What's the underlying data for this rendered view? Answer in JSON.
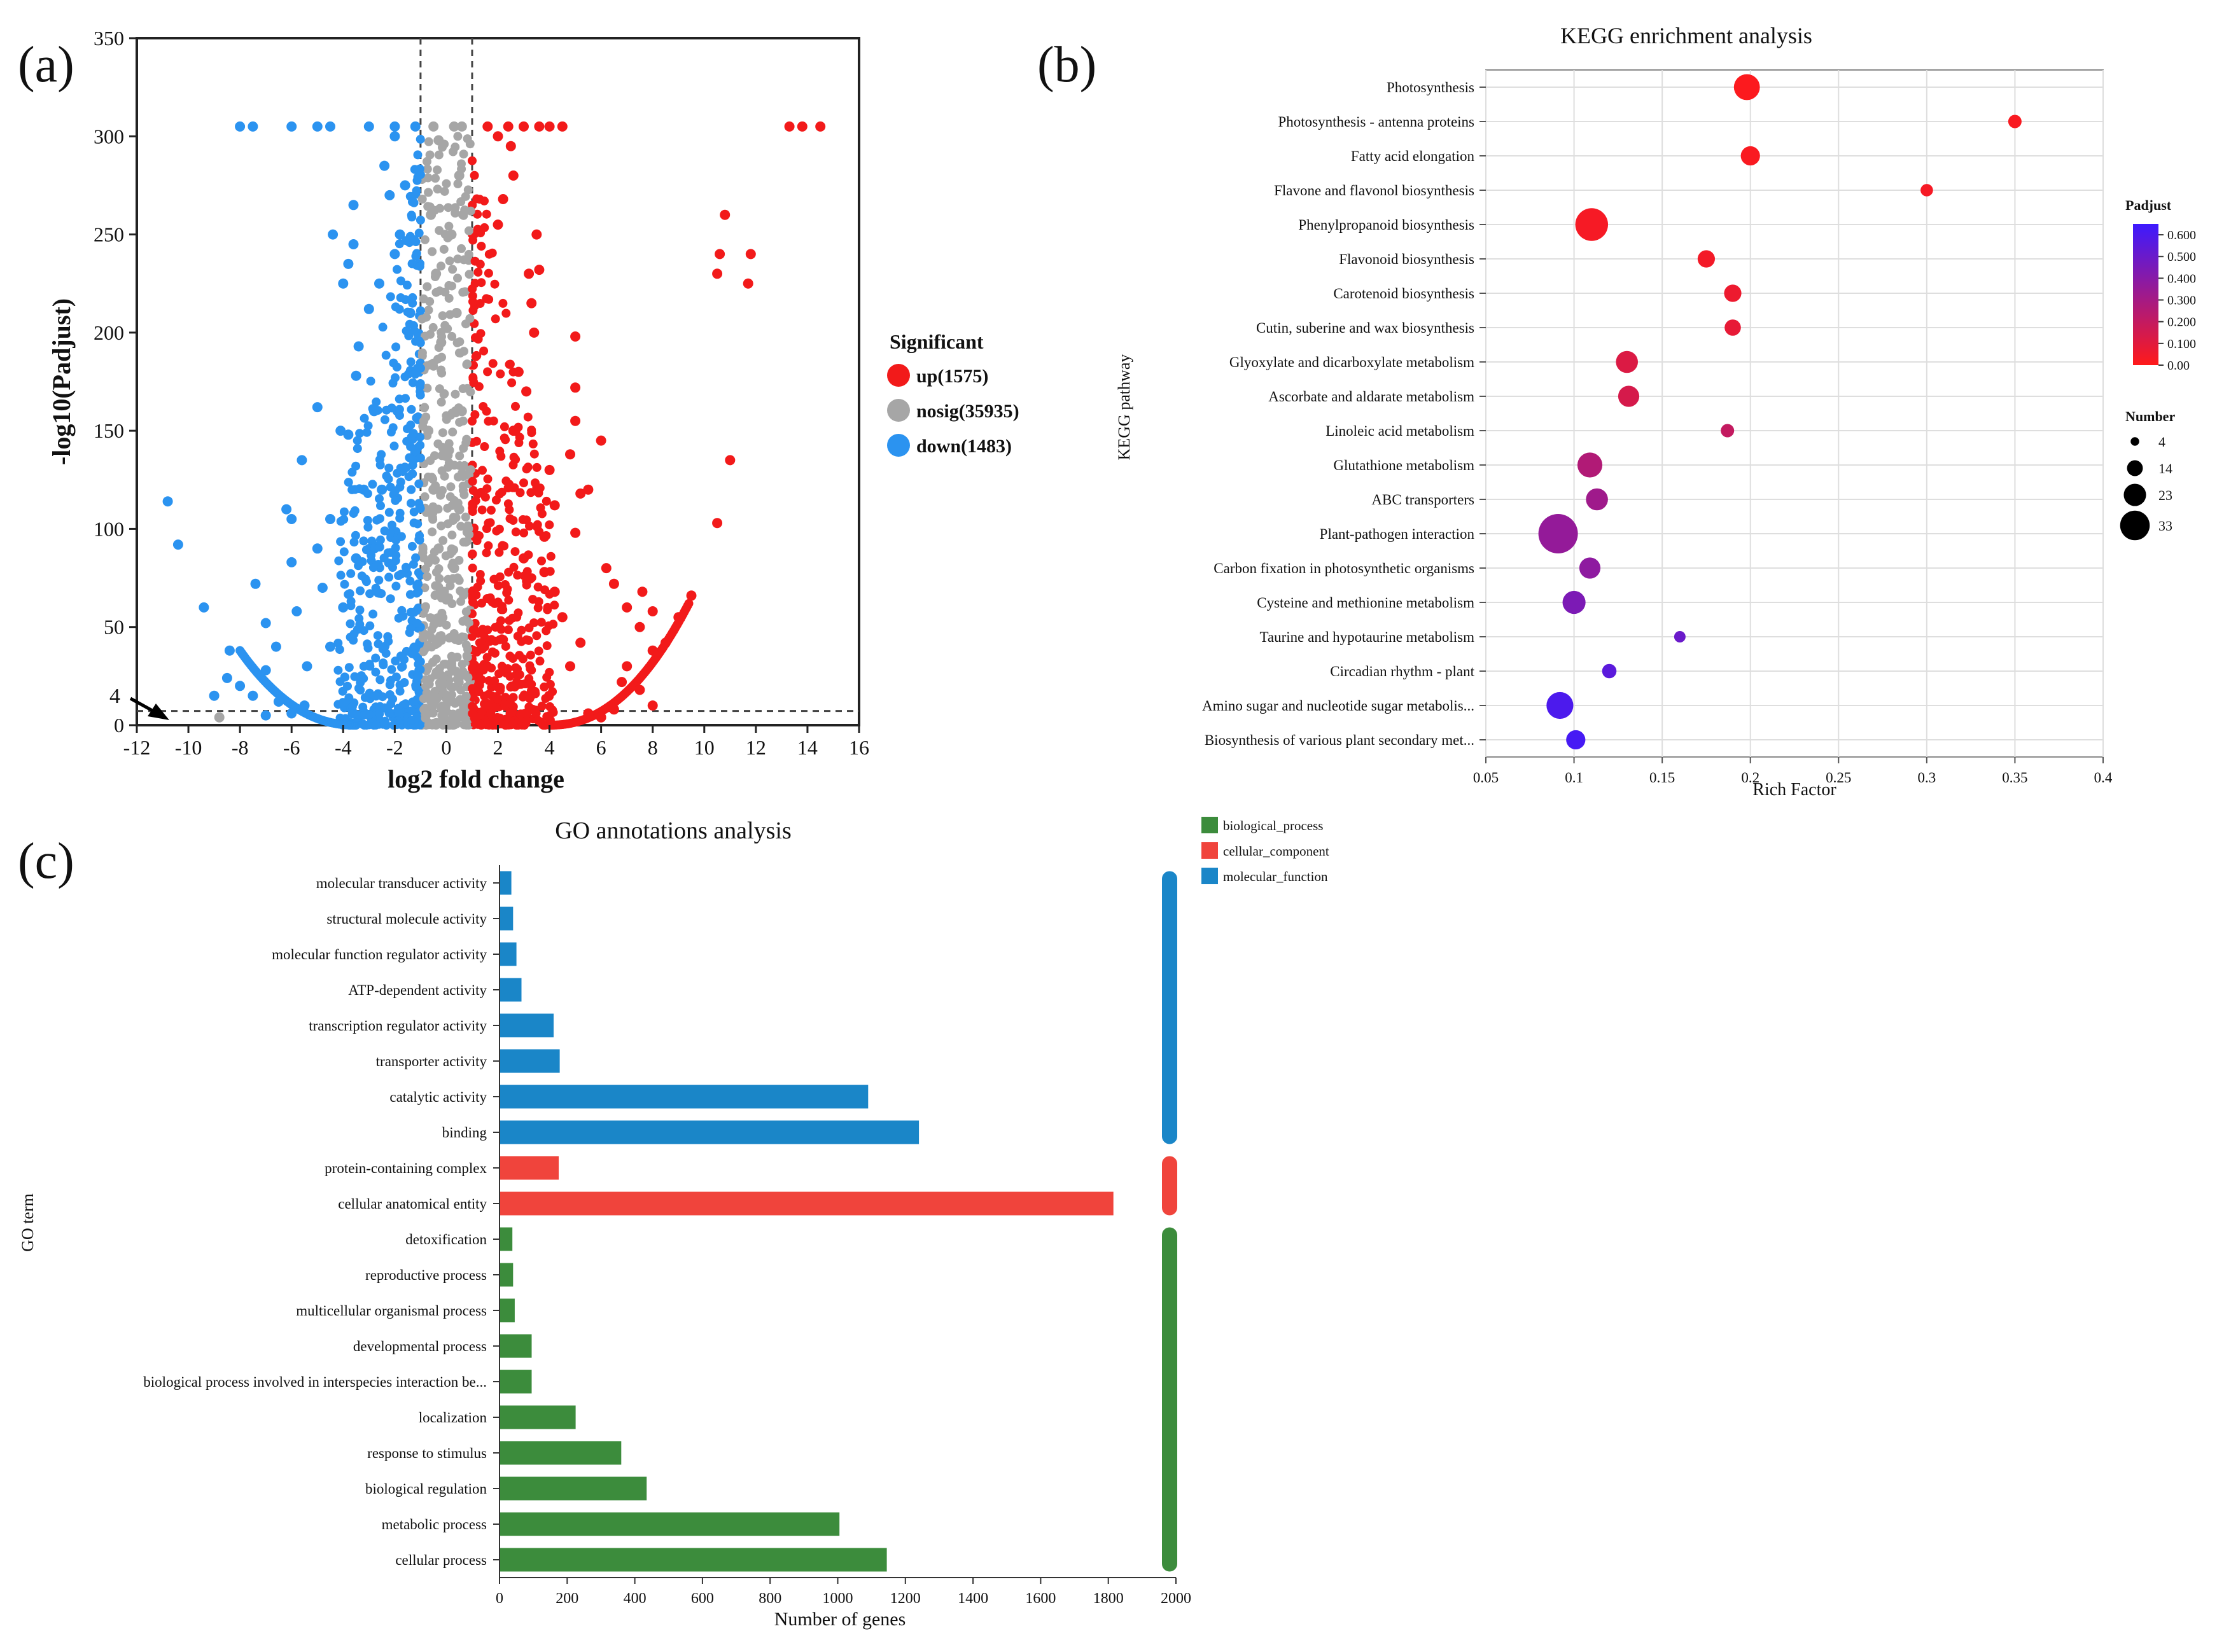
{
  "figure": {
    "panel_labels": {
      "a": "(a)",
      "b": "(b)",
      "c": "(c)"
    }
  },
  "chart_data": [
    {
      "id": "volcano",
      "type": "scatter",
      "title": "",
      "xlabel": "log2 fold change",
      "ylabel": "-log10(Padjust)",
      "xlim": [
        -12,
        16
      ],
      "ylim": [
        0,
        350
      ],
      "xticks": [
        -12,
        -10,
        -8,
        -6,
        -4,
        -2,
        0,
        2,
        4,
        6,
        8,
        10,
        12,
        14,
        16
      ],
      "yticks": [
        0,
        50,
        100,
        150,
        200,
        250,
        300,
        350
      ],
      "fc_threshold": [
        -1,
        1
      ],
      "padj_threshold": 4,
      "annotation": "4",
      "legend_title": "Significant",
      "legend": [
        {
          "label": "up(1575)",
          "color": "#f21a1a"
        },
        {
          "label": "nosig(35935)",
          "color": "#a6a6a6"
        },
        {
          "label": "down(1483)",
          "color": "#2b93f0"
        }
      ],
      "series": [
        {
          "name": "up",
          "color": "#f21a1a",
          "points": [
            [
              13.3,
              305
            ],
            [
              13.8,
              305
            ],
            [
              14.5,
              305
            ],
            [
              10.8,
              260
            ],
            [
              10.6,
              240
            ],
            [
              11.8,
              240
            ],
            [
              10.5,
              230
            ],
            [
              11.7,
              225
            ],
            [
              11.0,
              135
            ],
            [
              10.5,
              103
            ],
            [
              6.0,
              145
            ],
            [
              5.0,
              155
            ],
            [
              5.2,
              118
            ],
            [
              5.5,
              120
            ],
            [
              5.0,
              98
            ],
            [
              4.8,
              138
            ],
            [
              5.0,
              198
            ],
            [
              5.0,
              172
            ],
            [
              3.5,
              250
            ],
            [
              3.6,
              232
            ],
            [
              3.2,
              230
            ],
            [
              3.3,
              215
            ],
            [
              3.4,
              200
            ],
            [
              4.0,
              130
            ],
            [
              4.2,
              112
            ],
            [
              3.8,
              96
            ],
            [
              2.5,
              295
            ],
            [
              2.0,
              300
            ],
            [
              2.2,
              268
            ],
            [
              2.6,
              280
            ],
            [
              2.0,
              255
            ],
            [
              1.6,
              305
            ],
            [
              2.4,
              305
            ],
            [
              3.0,
              305
            ],
            [
              3.6,
              305
            ],
            [
              4.0,
              305
            ],
            [
              4.5,
              305
            ],
            [
              6.2,
              80
            ],
            [
              6.5,
              72
            ],
            [
              7.0,
              60
            ],
            [
              7.6,
              68
            ],
            [
              8.0,
              58
            ],
            [
              7.5,
              50
            ],
            [
              9.5,
              66
            ],
            [
              9.0,
              55
            ],
            [
              8.5,
              42
            ],
            [
              8.0,
              38
            ],
            [
              7.0,
              30
            ],
            [
              6.8,
              22
            ],
            [
              7.5,
              18
            ],
            [
              8.0,
              10
            ],
            [
              6.5,
              8
            ],
            [
              5.5,
              6
            ],
            [
              6.0,
              4
            ],
            [
              4.8,
              30
            ],
            [
              5.2,
              42
            ],
            [
              4.5,
              55
            ],
            [
              4.2,
              68
            ],
            [
              3.8,
              78
            ],
            [
              3.0,
              85
            ],
            [
              2.6,
              150
            ],
            [
              2.8,
              180
            ],
            [
              3.1,
              170
            ]
          ]
        },
        {
          "name": "nosig",
          "color": "#a6a6a6",
          "points": [
            [
              -0.5,
              305
            ],
            [
              0.3,
              305
            ],
            [
              0.6,
              305
            ],
            [
              -0.3,
              298
            ],
            [
              0.5,
              280
            ],
            [
              -0.6,
              260
            ],
            [
              0.2,
              250
            ],
            [
              -0.4,
              230
            ],
            [
              0.4,
              210
            ],
            [
              -0.2,
              195
            ],
            [
              -8.8,
              4
            ],
            [
              0.6,
              160
            ],
            [
              -0.7,
              150
            ],
            [
              0.1,
              140
            ],
            [
              -0.5,
              120
            ],
            [
              0.5,
              110
            ],
            [
              -0.3,
              90
            ],
            [
              0.3,
              80
            ]
          ]
        },
        {
          "name": "down",
          "color": "#2b93f0",
          "points": [
            [
              -10.8,
              114
            ],
            [
              -10.4,
              92
            ],
            [
              -9.4,
              60
            ],
            [
              -9.0,
              15
            ],
            [
              -8.4,
              38
            ],
            [
              -8.5,
              24
            ],
            [
              -8.0,
              20
            ],
            [
              -7.4,
              72
            ],
            [
              -7.0,
              52
            ],
            [
              -7.0,
              28
            ],
            [
              -6.6,
              40
            ],
            [
              -6.5,
              12
            ],
            [
              -6.2,
              110
            ],
            [
              -6.0,
              105
            ],
            [
              -6.0,
              83
            ],
            [
              -5.8,
              58
            ],
            [
              -5.6,
              135
            ],
            [
              -5.4,
              30
            ],
            [
              -5.0,
              162
            ],
            [
              -5.0,
              90
            ],
            [
              -4.8,
              70
            ],
            [
              -4.5,
              105
            ],
            [
              -4.4,
              250
            ],
            [
              -4.0,
              225
            ],
            [
              -4.1,
              150
            ],
            [
              -3.8,
              148
            ],
            [
              -3.8,
              235
            ],
            [
              -3.6,
              245
            ],
            [
              -3.5,
              178
            ],
            [
              -3.6,
              265
            ],
            [
              -3.4,
              193
            ],
            [
              -3.2,
              120
            ],
            [
              -3.0,
              212
            ],
            [
              -2.8,
              160
            ],
            [
              -2.6,
              225
            ],
            [
              -2.4,
              285
            ],
            [
              -2.2,
              270
            ],
            [
              -2.0,
              240
            ],
            [
              -2.0,
              300
            ],
            [
              -1.8,
              250
            ],
            [
              -1.6,
              275
            ],
            [
              -1.4,
              210
            ],
            [
              -4.5,
              305
            ],
            [
              -5.0,
              305
            ],
            [
              -6.0,
              305
            ],
            [
              -7.5,
              305
            ],
            [
              -8.0,
              305
            ],
            [
              -3.0,
              305
            ],
            [
              -2.0,
              305
            ],
            [
              -1.2,
              305
            ],
            [
              -7.5,
              15
            ],
            [
              -7.0,
              5
            ],
            [
              -6.0,
              6
            ],
            [
              -5.5,
              10
            ],
            [
              -4.5,
              40
            ],
            [
              -4.0,
              60
            ],
            [
              -3.5,
              85
            ],
            [
              -2.5,
              120
            ]
          ]
        }
      ]
    },
    {
      "id": "kegg",
      "type": "scatter",
      "title": "KEGG enrichment analysis",
      "xlabel": "Rich Factor",
      "ylabel": "KEGG pathway",
      "xlim": [
        0.05,
        0.4
      ],
      "xticks": [
        0.05,
        0.1,
        0.15,
        0.2,
        0.25,
        0.3,
        0.35,
        0.4
      ],
      "xtick_labels": [
        "0.05",
        "0.1",
        "0.15",
        "0.2",
        "0.25",
        "0.3",
        "0.35",
        "0.4"
      ],
      "categories": [
        "Photosynthesis",
        "Photosynthesis - antenna proteins",
        "Fatty acid elongation",
        "Flavone and flavonol biosynthesis",
        "Phenylpropanoid biosynthesis",
        "Flavonoid biosynthesis",
        "Carotenoid biosynthesis",
        "Cutin, suberine and wax biosynthesis",
        "Glyoxylate and dicarboxylate metabolism",
        "Ascorbate and aldarate metabolism",
        "Linoleic acid metabolism",
        "Glutathione metabolism",
        "ABC transporters",
        "Plant-pathogen interaction",
        "Carbon fixation in photosynthetic organisms",
        "Cysteine and methionine metabolism",
        "Taurine and hypotaurine metabolism",
        "Circadian rhythm - plant",
        "Amino sugar and nucleotide sugar metabolis...",
        "Biosynthesis of various plant secondary met..."
      ],
      "rich_factor": [
        0.198,
        0.35,
        0.2,
        0.3,
        0.11,
        0.175,
        0.19,
        0.19,
        0.13,
        0.131,
        0.187,
        0.109,
        0.113,
        0.091,
        0.109,
        0.1,
        0.16,
        0.12,
        0.092,
        0.101
      ],
      "number": [
        19,
        6,
        12,
        5,
        26,
        10,
        10,
        9,
        15,
        14,
        6,
        18,
        15,
        33,
        14,
        16,
        4,
        7,
        20,
        12
      ],
      "padjust": [
        0.01,
        0.02,
        0.02,
        0.03,
        0.03,
        0.04,
        0.06,
        0.08,
        0.12,
        0.14,
        0.2,
        0.26,
        0.32,
        0.36,
        0.38,
        0.44,
        0.5,
        0.55,
        0.6,
        0.62
      ],
      "colorbar": {
        "title": "Padjust",
        "ticks": [
          "0.00",
          "0.100",
          "0.200",
          "0.300",
          "0.400",
          "0.500",
          "0.600"
        ],
        "range": [
          0,
          0.65
        ],
        "low_color": "#ff1a1a",
        "high_color": "#3d1aff"
      },
      "size_legend": {
        "title": "Number",
        "values": [
          "4",
          "14",
          "23",
          "33"
        ]
      }
    },
    {
      "id": "go",
      "type": "bar",
      "orientation": "horizontal",
      "title": "GO annotations analysis",
      "xlabel": "Number of genes",
      "ylabel": "GO term",
      "xlim": [
        0,
        2000
      ],
      "xticks": [
        "0",
        "200",
        "400",
        "600",
        "800",
        "1000",
        "1200",
        "1400",
        "1600",
        "1800",
        "2000"
      ],
      "categories": [
        "molecular transducer activity",
        "structural molecule activity",
        "molecular function regulator activity",
        "ATP-dependent activity",
        "transcription regulator activity",
        "transporter activity",
        "catalytic activity",
        "binding",
        "protein-containing complex",
        "cellular anatomical entity",
        "detoxification",
        "reproductive process",
        "multicellular organismal process",
        "developmental process",
        "biological process involved in interspecies interaction be...",
        "localization",
        "response to stimulus",
        "biological regulation",
        "metabolic process",
        "cellular process"
      ],
      "values": [
        35,
        40,
        50,
        65,
        160,
        178,
        1090,
        1240,
        175,
        1815,
        38,
        40,
        45,
        95,
        95,
        225,
        360,
        435,
        1005,
        1145
      ],
      "groups": [
        "molecular_function",
        "molecular_function",
        "molecular_function",
        "molecular_function",
        "molecular_function",
        "molecular_function",
        "molecular_function",
        "molecular_function",
        "cellular_component",
        "cellular_component",
        "biological_process",
        "biological_process",
        "biological_process",
        "biological_process",
        "biological_process",
        "biological_process",
        "biological_process",
        "biological_process",
        "biological_process",
        "biological_process"
      ],
      "legend": [
        {
          "label": "biological_process",
          "color": "#3c8c3c"
        },
        {
          "label": "cellular_component",
          "color": "#f0443c"
        },
        {
          "label": "molecular_function",
          "color": "#1a86c8"
        }
      ]
    }
  ]
}
